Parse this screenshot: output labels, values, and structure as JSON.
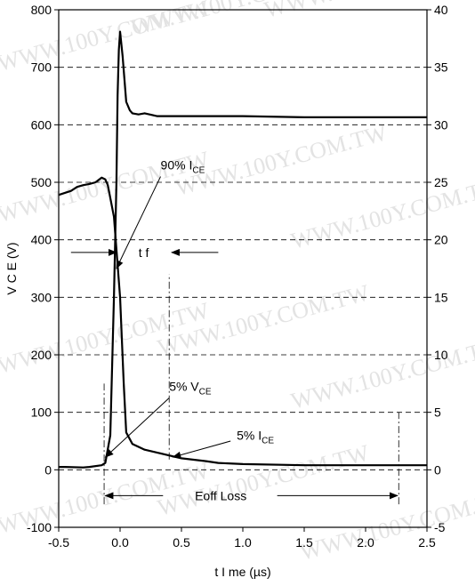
{
  "chart_data": {
    "type": "line",
    "xlabel": "t I me  (µs)",
    "ylabel_left": "V C E  (V)",
    "xlim": [
      -0.5,
      2.5
    ],
    "ylim_left": [
      -100,
      800
    ],
    "ylim_right": [
      -5,
      40
    ],
    "x_ticks": [
      "-0.5",
      "0.0",
      "0.5",
      "1.0",
      "1.5",
      "2.0",
      "2.5"
    ],
    "y_left_ticks": [
      "-100",
      "0",
      "100",
      "200",
      "300",
      "400",
      "500",
      "600",
      "700",
      "800"
    ],
    "y_right_ticks": [
      "-5",
      "0",
      "5",
      "10",
      "15",
      "20",
      "25",
      "30",
      "35",
      "40"
    ],
    "grid": "horizontal dashed",
    "series": [
      {
        "axis": "left",
        "x": [
          -0.5,
          -0.45,
          -0.3,
          -0.25,
          -0.15,
          -0.12,
          -0.08,
          -0.05,
          -0.03,
          -0.02,
          -0.01,
          0.0,
          0.02,
          0.05,
          0.08,
          0.1,
          0.15,
          0.2,
          0.3,
          0.5,
          0.8,
          1.0,
          1.5,
          2.0,
          2.3,
          2.5
        ],
        "y": [
          5,
          5,
          4,
          5,
          8,
          12,
          60,
          300,
          500,
          650,
          730,
          762,
          720,
          640,
          625,
          620,
          618,
          620,
          615,
          615,
          615,
          615,
          613,
          613,
          613,
          613
        ]
      },
      {
        "axis": "left",
        "x": [
          -0.5,
          -0.4,
          -0.35,
          -0.3,
          -0.25,
          -0.2,
          -0.15,
          -0.12,
          -0.1,
          -0.05,
          0.0,
          0.03,
          0.05,
          0.1,
          0.2,
          0.3,
          0.4,
          0.5,
          0.7,
          0.8,
          1.0,
          1.5,
          2.0,
          2.3,
          2.5
        ],
        "y": [
          478,
          485,
          492,
          495,
          497,
          500,
          508,
          505,
          495,
          440,
          300,
          150,
          65,
          45,
          35,
          30,
          25,
          20,
          15,
          12,
          10,
          8,
          8,
          8,
          8
        ]
      }
    ],
    "annotations": {
      "ic90": {
        "label": "90% I",
        "sub": "CE",
        "x": 0.33,
        "y": 530
      },
      "vce5": {
        "label": "5% V",
        "sub": "CE",
        "x": 0.4,
        "y": 145
      },
      "ic5": {
        "label": "5% I",
        "sub": "CE",
        "x": 0.95,
        "y": 60
      },
      "tf": {
        "label": "t f",
        "x": 0.15,
        "y": 378
      },
      "eoff": {
        "label": "Eoff Loss",
        "x": 0.82,
        "y": -45
      }
    },
    "markers": {
      "x_lines": [
        -0.13,
        0.4,
        2.27
      ]
    }
  },
  "watermark": "WWW.100Y.COM.TW"
}
